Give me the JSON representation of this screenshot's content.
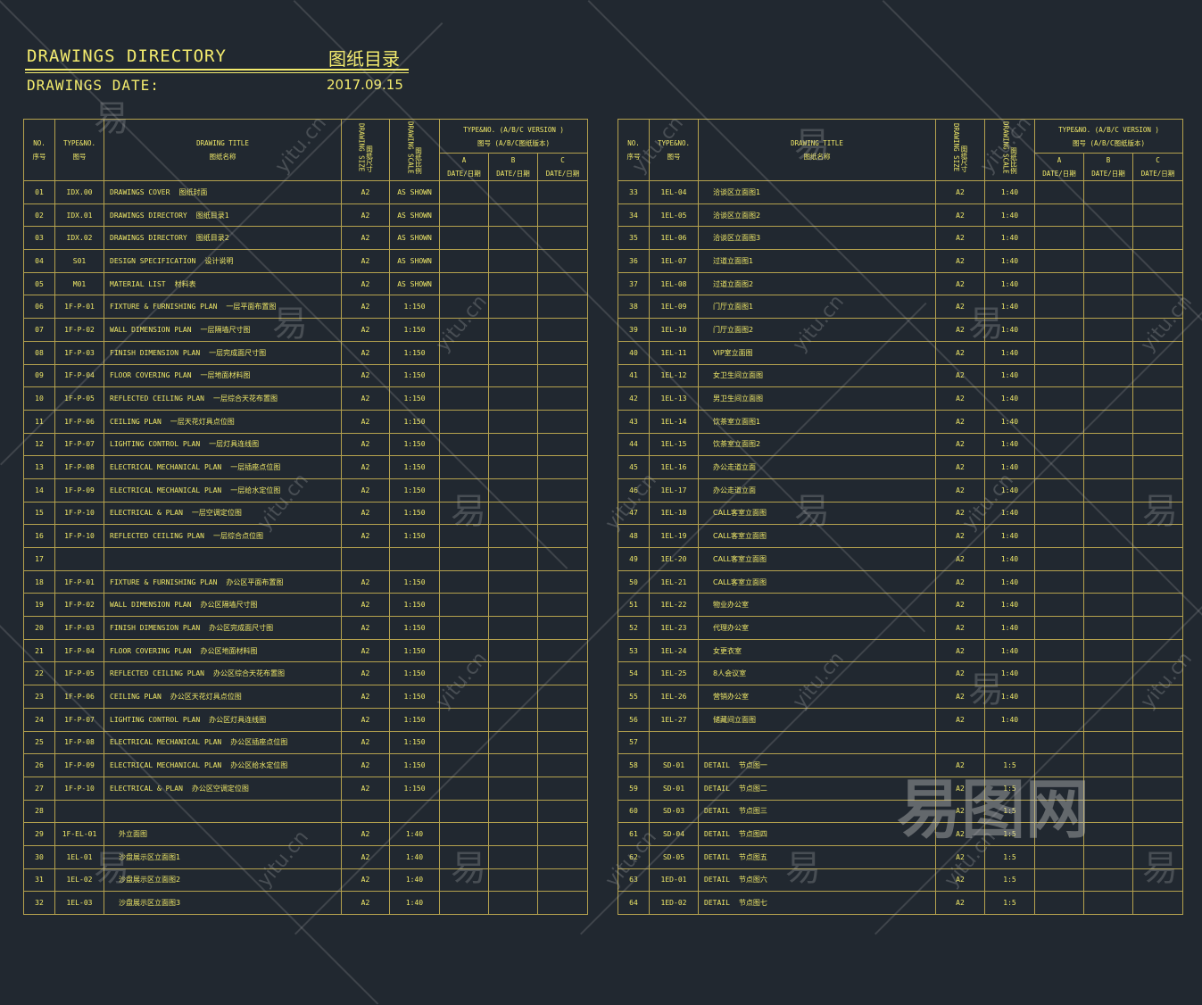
{
  "header": {
    "title_en": "DRAWINGS  DIRECTORY",
    "title_cn": "图纸目录",
    "date_label": "DRAWINGS  DATE:",
    "date_value": "2017.09.15"
  },
  "columns": {
    "no": "NO.",
    "no_cn": "序号",
    "type": "TYPE&NO.",
    "type_cn": "图号",
    "title": "DRAWING  TITLE",
    "title_cn": "图纸名称",
    "size": "DRAWING SIZE",
    "size_cn": "图纸尺寸",
    "scale": "DRAWING SCALE",
    "scale_cn": "图纸比例",
    "version": "TYPE&NO. (A/B/C  VERSION )",
    "version_cn": "图号 (A/B/C图纸版本)",
    "a": "A",
    "b": "B",
    "c": "C",
    "date": "DATE/日期"
  },
  "left_rows": [
    {
      "no": "01",
      "code": "IDX.00",
      "en": "DRAWINGS  COVER",
      "cn": "图纸封面",
      "size": "A2",
      "scale": "AS SHOWN"
    },
    {
      "no": "02",
      "code": "IDX.01",
      "en": "DRAWINGS  DIRECTORY",
      "cn": "图纸目录1",
      "size": "A2",
      "scale": "AS SHOWN"
    },
    {
      "no": "03",
      "code": "IDX.02",
      "en": "DRAWINGS  DIRECTORY",
      "cn": "图纸目录2",
      "size": "A2",
      "scale": "AS SHOWN"
    },
    {
      "no": "04",
      "code": "S01",
      "en": "DESIGN SPECIFICATION",
      "cn": "设计说明",
      "size": "A2",
      "scale": "AS SHOWN"
    },
    {
      "no": "05",
      "code": "M01",
      "en": "MATERIAL LIST",
      "cn": "材料表",
      "size": "A2",
      "scale": "AS SHOWN"
    },
    {
      "no": "06",
      "code": "1F-P-01",
      "en": "FIXTURE & FURNISHING  PLAN",
      "cn": "一层平面布置图",
      "size": "A2",
      "scale": "1:150"
    },
    {
      "no": "07",
      "code": "1F-P-02",
      "en": "WALL  DIMENSION  PLAN",
      "cn": "一层隔墙尺寸图",
      "size": "A2",
      "scale": "1:150"
    },
    {
      "no": "08",
      "code": "1F-P-03",
      "en": "FINISH DIMENSION PLAN",
      "cn": "一层完成面尺寸图",
      "size": "A2",
      "scale": "1:150"
    },
    {
      "no": "09",
      "code": "1F-P-04",
      "en": "FLOOR  COVERING  PLAN",
      "cn": "一层地面材料图",
      "size": "A2",
      "scale": "1:150"
    },
    {
      "no": "10",
      "code": "1F-P-05",
      "en": "REFLECTED CEILING PLAN",
      "cn": "一层综合天花布置图",
      "size": "A2",
      "scale": "1:150"
    },
    {
      "no": "11",
      "code": "1F-P-06",
      "en": "CEILING  PLAN",
      "cn": "一层天花灯具点位图",
      "size": "A2",
      "scale": "1:150"
    },
    {
      "no": "12",
      "code": "1F-P-07",
      "en": "LIGHTING   CONTROL  PLAN",
      "cn": "一层灯具连线图",
      "size": "A2",
      "scale": "1:150"
    },
    {
      "no": "13",
      "code": "1F-P-08",
      "en": "ELECTRICAL MECHANICAL PLAN",
      "cn": "一层插座点位图",
      "size": "A2",
      "scale": "1:150"
    },
    {
      "no": "14",
      "code": "1F-P-09",
      "en": "ELECTRICAL MECHANICAL PLAN",
      "cn": "一层给水定位图",
      "size": "A2",
      "scale": "1:150"
    },
    {
      "no": "15",
      "code": "1F-P-10",
      "en": "ELECTRICAL & PLAN",
      "cn": "一层空调定位图",
      "size": "A2",
      "scale": "1:150"
    },
    {
      "no": "16",
      "code": "1F-P-10",
      "en": "REFLECTED CEILING PLAN",
      "cn": "一层综合点位图",
      "size": "A2",
      "scale": "1:150"
    },
    {
      "no": "17",
      "code": "",
      "en": "",
      "cn": "",
      "size": "",
      "scale": ""
    },
    {
      "no": "18",
      "code": "1F-P-01",
      "en": "FIXTURE & FURNISHING  PLAN",
      "cn": "办公区平面布置图",
      "size": "A2",
      "scale": "1:150"
    },
    {
      "no": "19",
      "code": "1F-P-02",
      "en": "WALL  DIMENSION  PLAN",
      "cn": "办公区隔墙尺寸图",
      "size": "A2",
      "scale": "1:150"
    },
    {
      "no": "20",
      "code": "1F-P-03",
      "en": "FINISH DIMENSION PLAN",
      "cn": "办公区完成面尺寸图",
      "size": "A2",
      "scale": "1:150"
    },
    {
      "no": "21",
      "code": "1F-P-04",
      "en": "FLOOR  COVERING  PLAN",
      "cn": "办公区地面材料图",
      "size": "A2",
      "scale": "1:150"
    },
    {
      "no": "22",
      "code": "1F-P-05",
      "en": "REFLECTED CEILING PLAN",
      "cn": "办公区综合天花布置图",
      "size": "A2",
      "scale": "1:150"
    },
    {
      "no": "23",
      "code": "1F-P-06",
      "en": "CEILING  PLAN",
      "cn": "办公区天花灯具点位图",
      "size": "A2",
      "scale": "1:150"
    },
    {
      "no": "24",
      "code": "1F-P-07",
      "en": "LIGHTING   CONTROL  PLAN",
      "cn": "办公区灯具连线图",
      "size": "A2",
      "scale": "1:150"
    },
    {
      "no": "25",
      "code": "1F-P-08",
      "en": "ELECTRICAL MECHANICAL PLAN",
      "cn": "办公区插座点位图",
      "size": "A2",
      "scale": "1:150"
    },
    {
      "no": "26",
      "code": "1F-P-09",
      "en": "ELECTRICAL MECHANICAL PLAN",
      "cn": "办公区给水定位图",
      "size": "A2",
      "scale": "1:150"
    },
    {
      "no": "27",
      "code": "1F-P-10",
      "en": "ELECTRICAL & PLAN",
      "cn": "办公区空调定位图",
      "size": "A2",
      "scale": "1:150"
    },
    {
      "no": "28",
      "code": "",
      "en": "",
      "cn": "",
      "size": "",
      "scale": ""
    },
    {
      "no": "29",
      "code": "1F-EL-01",
      "en": "",
      "cn": "外立面图",
      "size": "A2",
      "scale": "1:40"
    },
    {
      "no": "30",
      "code": "1EL-01",
      "en": "",
      "cn": "沙盘展示区立面图1",
      "size": "A2",
      "scale": "1:40"
    },
    {
      "no": "31",
      "code": "1EL-02",
      "en": "",
      "cn": "沙盘展示区立面图2",
      "size": "A2",
      "scale": "1:40"
    },
    {
      "no": "32",
      "code": "1EL-03",
      "en": "",
      "cn": "沙盘展示区立面图3",
      "size": "A2",
      "scale": "1:40"
    }
  ],
  "right_rows": [
    {
      "no": "33",
      "code": "1EL-04",
      "en": "",
      "cn": "洽谈区立面图1",
      "size": "A2",
      "scale": "1:40"
    },
    {
      "no": "34",
      "code": "1EL-05",
      "en": "",
      "cn": "洽谈区立面图2",
      "size": "A2",
      "scale": "1:40"
    },
    {
      "no": "35",
      "code": "1EL-06",
      "en": "",
      "cn": "洽谈区立面图3",
      "size": "A2",
      "scale": "1:40"
    },
    {
      "no": "36",
      "code": "1EL-07",
      "en": "",
      "cn": "过道立面图1",
      "size": "A2",
      "scale": "1:40"
    },
    {
      "no": "37",
      "code": "1EL-08",
      "en": "",
      "cn": "过道立面图2",
      "size": "A2",
      "scale": "1:40"
    },
    {
      "no": "38",
      "code": "1EL-09",
      "en": "",
      "cn": "门厅立面图1",
      "size": "A2",
      "scale": "1:40"
    },
    {
      "no": "39",
      "code": "1EL-10",
      "en": "",
      "cn": "门厅立面图2",
      "size": "A2",
      "scale": "1:40"
    },
    {
      "no": "40",
      "code": "1EL-11",
      "en": "",
      "cn": "VIP室立面图",
      "size": "A2",
      "scale": "1:40"
    },
    {
      "no": "41",
      "code": "1EL-12",
      "en": "",
      "cn": "女卫生间立面图",
      "size": "A2",
      "scale": "1:40"
    },
    {
      "no": "42",
      "code": "1EL-13",
      "en": "",
      "cn": "男卫生间立面图",
      "size": "A2",
      "scale": "1:40"
    },
    {
      "no": "43",
      "code": "1EL-14",
      "en": "",
      "cn": "饮茶室立面图1",
      "size": "A2",
      "scale": "1:40"
    },
    {
      "no": "44",
      "code": "1EL-15",
      "en": "",
      "cn": "饮茶室立面图2",
      "size": "A2",
      "scale": "1:40"
    },
    {
      "no": "45",
      "code": "1EL-16",
      "en": "",
      "cn": "办公走道立面",
      "size": "A2",
      "scale": "1:40"
    },
    {
      "no": "46",
      "code": "1EL-17",
      "en": "",
      "cn": "办公走道立面",
      "size": "A2",
      "scale": "1:40"
    },
    {
      "no": "47",
      "code": "1EL-18",
      "en": "",
      "cn": "CALL客室立面图",
      "size": "A2",
      "scale": "1:40"
    },
    {
      "no": "48",
      "code": "1EL-19",
      "en": "",
      "cn": "CALL客室立面图",
      "size": "A2",
      "scale": "1:40"
    },
    {
      "no": "49",
      "code": "1EL-20",
      "en": "",
      "cn": "CALL客室立面图",
      "size": "A2",
      "scale": "1:40"
    },
    {
      "no": "50",
      "code": "1EL-21",
      "en": "",
      "cn": "CALL客室立面图",
      "size": "A2",
      "scale": "1:40"
    },
    {
      "no": "51",
      "code": "1EL-22",
      "en": "",
      "cn": "物业办公室",
      "size": "A2",
      "scale": "1:40"
    },
    {
      "no": "52",
      "code": "1EL-23",
      "en": "",
      "cn": "代理办公室",
      "size": "A2",
      "scale": "1:40"
    },
    {
      "no": "53",
      "code": "1EL-24",
      "en": "",
      "cn": "女更衣室",
      "size": "A2",
      "scale": "1:40"
    },
    {
      "no": "54",
      "code": "1EL-25",
      "en": "",
      "cn": "8人会议室",
      "size": "A2",
      "scale": "1:40"
    },
    {
      "no": "55",
      "code": "1EL-26",
      "en": "",
      "cn": "营销办公室",
      "size": "A2",
      "scale": "1:40"
    },
    {
      "no": "56",
      "code": "1EL-27",
      "en": "",
      "cn": "储藏间立面图",
      "size": "A2",
      "scale": "1:40"
    },
    {
      "no": "57",
      "code": "",
      "en": "",
      "cn": "",
      "size": "",
      "scale": ""
    },
    {
      "no": "58",
      "code": "SD-01",
      "en": "DETAIL",
      "cn": "节点图一",
      "size": "A2",
      "scale": "1:5"
    },
    {
      "no": "59",
      "code": "SD-01",
      "en": "DETAIL",
      "cn": "节点图二",
      "size": "A2",
      "scale": "1:5"
    },
    {
      "no": "60",
      "code": "SD-03",
      "en": "DETAIL",
      "cn": "节点图三",
      "size": "A2",
      "scale": "1:5"
    },
    {
      "no": "61",
      "code": "SD-04",
      "en": "DETAIL",
      "cn": "节点图四",
      "size": "A2",
      "scale": "1:5"
    },
    {
      "no": "62",
      "code": "SD-05",
      "en": "DETAIL",
      "cn": "节点图五",
      "size": "A2",
      "scale": "1:5"
    },
    {
      "no": "63",
      "code": "1ED-01",
      "en": "DETAIL",
      "cn": "节点图六",
      "size": "A2",
      "scale": "1:5"
    },
    {
      "no": "64",
      "code": "1ED-02",
      "en": "DETAIL",
      "cn": "节点图七",
      "size": "A2",
      "scale": "1:5"
    }
  ],
  "watermark": {
    "brand_cn": "易图网",
    "glyph_cn": "易",
    "domain": "yitu.cn"
  }
}
